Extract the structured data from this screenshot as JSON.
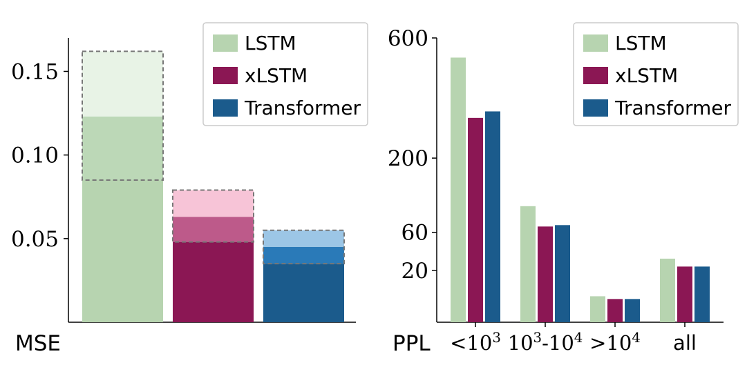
{
  "colors": {
    "lstm": "#b7d4b0",
    "xlstm": "#8b1754",
    "transformer": "#1b5b8c",
    "lstm_light": "#e8f3e6",
    "lstm_mid": "#bcd8b7",
    "xlstm_light": "#f7c4d7",
    "xlstm_mid": "#bd5a8a",
    "transformer_light": "#9cc6e6",
    "transformer_mid": "#2a7ab8",
    "range_border": "#777777"
  },
  "chart_data": [
    {
      "type": "bar",
      "xlabel": "MSE",
      "ylim": [
        0,
        0.17
      ],
      "yticks": [
        0.05,
        0.1,
        0.15
      ],
      "ytick_labels": [
        "0.05",
        "0.10",
        "0.15"
      ],
      "legend": {
        "placement": "top-right",
        "entries": [
          "LSTM",
          "xLSTM",
          "Transformer"
        ]
      },
      "series": [
        {
          "name": "LSTM",
          "color_key": "lstm",
          "value": 0.085,
          "mid": 0.123,
          "range": [
            0.085,
            0.162
          ]
        },
        {
          "name": "xLSTM",
          "color_key": "xlstm",
          "value": 0.048,
          "mid": 0.063,
          "range": [
            0.048,
            0.079
          ]
        },
        {
          "name": "Transformer",
          "color_key": "transformer",
          "value": 0.035,
          "mid": 0.045,
          "range": [
            0.035,
            0.055
          ]
        }
      ]
    },
    {
      "type": "bar",
      "xlabel": "PPL",
      "yscale": "sqrt",
      "ylim": [
        0,
        600
      ],
      "yticks": [
        20,
        60,
        200,
        600
      ],
      "ytick_labels": [
        "20",
        "60",
        "200",
        "600"
      ],
      "categories": [
        "<10^3",
        "10^3-10^4",
        ">10^4",
        "all"
      ],
      "legend": {
        "placement": "top-right",
        "entries": [
          "LSTM",
          "xLSTM",
          "Transformer"
        ]
      },
      "series": [
        {
          "name": "LSTM",
          "color_key": "lstm",
          "values": [
            520,
            100,
            5,
            30
          ]
        },
        {
          "name": "xLSTM",
          "color_key": "xlstm",
          "values": [
            310,
            68,
            4,
            23
          ]
        },
        {
          "name": "Transformer",
          "color_key": "transformer",
          "values": [
            330,
            70,
            4,
            23
          ]
        }
      ]
    }
  ]
}
